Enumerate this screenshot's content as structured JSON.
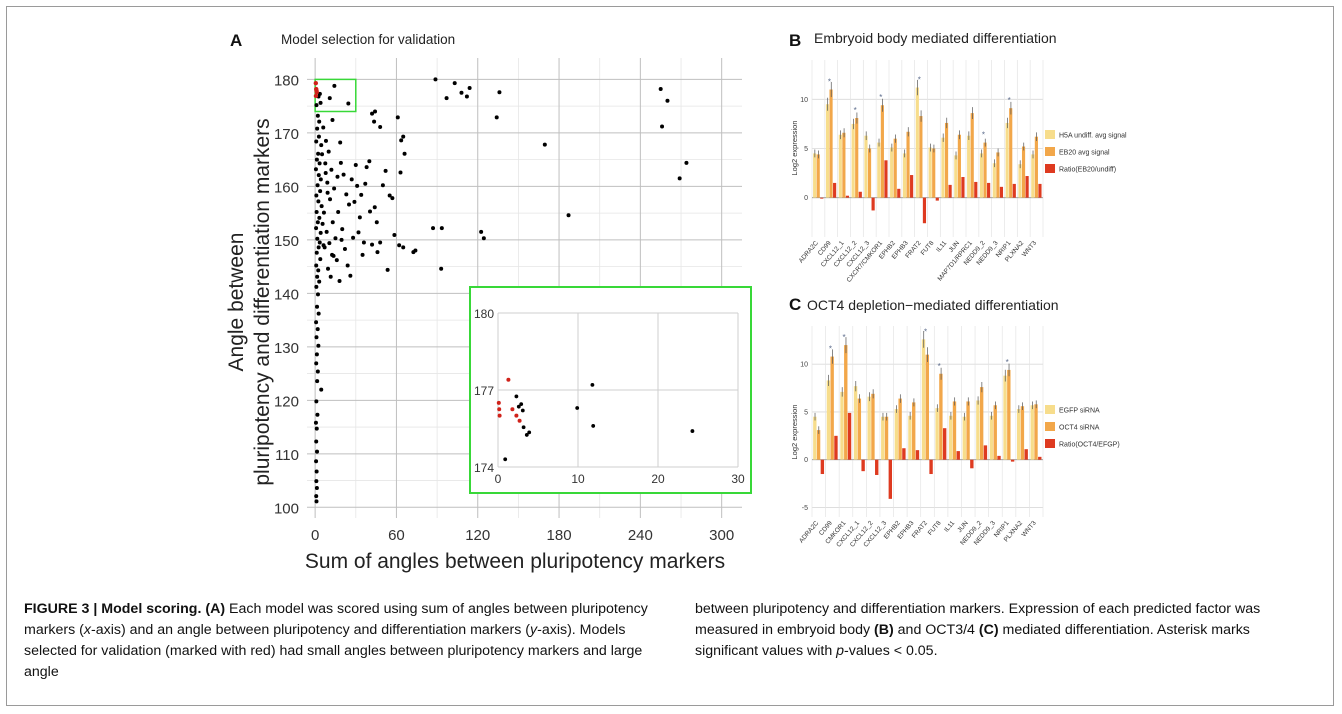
{
  "panels": {
    "A": {
      "letter": "A",
      "title": "Model selection for validation",
      "xlabel": "Sum of angles between pluripotency markers",
      "ylabel_line1": "Angle between",
      "ylabel_line2": "pluripotency and differentiation markers"
    },
    "B": {
      "letter": "B",
      "title": "Embryoid body mediated differentiation",
      "ylabel": "Log2 expression"
    },
    "C": {
      "letter": "C",
      "title": "OCT4 depletion−mediated differentiation",
      "ylabel": "Log2 expression"
    }
  },
  "colors": {
    "point": "#000000",
    "selected": "#d0221a",
    "highlight_box": "#38d838",
    "grid": "#bfbfbf",
    "bar_light": "#f7dd8c",
    "bar_mid": "#f2a74a",
    "bar_ratio": "#de3a20",
    "error_bar": "#555555",
    "asterisk": "#5a6a8a"
  },
  "caption": {
    "label": "FIGURE 3 | Model scoring.",
    "p1_marker": "(A)",
    "p1_a": "Each model was scored using sum of angles between pluripotency markers (",
    "p1_x": "x",
    "p1_b": "-axis) and an angle between pluripotency and differentiation markers (",
    "p1_y": "y",
    "p1_c": "-axis). Models selected for validation (marked with red) had small angles between pluripotency markers and large angle",
    "p2_a": "between pluripotency and differentiation markers. Expression of each predicted factor was measured in embryoid body ",
    "p2_b_marker": "(B)",
    "p2_c": " and OCT3/4 ",
    "p2_d_marker": "(C)",
    "p2_e": " mediated differentiation. Asterisk marks significant values with ",
    "p2_p": "p",
    "p2_f": "-values < 0.05."
  },
  "chart_data": [
    {
      "id": "A",
      "type": "scatter",
      "title": "Model selection for validation",
      "xlabel": "Sum of angles between pluripotency markers",
      "ylabel": "Angle between pluripotency and differentiation markers",
      "xlim": [
        -6,
        315
      ],
      "ylim": [
        98,
        184
      ],
      "xticks": [
        "0",
        "60",
        "120",
        "180",
        "240",
        "300"
      ],
      "yticks": [
        "100",
        "110",
        "120",
        "130",
        "140",
        "150",
        "160",
        "170",
        "180"
      ],
      "grid": true,
      "highlight_region": {
        "x": [
          0,
          30
        ],
        "y": [
          174,
          180
        ]
      },
      "selected": [
        [
          0.5,
          179.3
        ],
        [
          0.8,
          178.2
        ],
        [
          1.2,
          177.6
        ],
        [
          0.6,
          176.9
        ],
        [
          1.0,
          177.9
        ]
      ],
      "points": [
        [
          1.0,
          175.2
        ],
        [
          2.5,
          176.8
        ],
        [
          3.5,
          177.3
        ],
        [
          4.0,
          175.6
        ],
        [
          2.0,
          173.2
        ],
        [
          3.0,
          172.1
        ],
        [
          1.5,
          170.8
        ],
        [
          2.8,
          169.3
        ],
        [
          0.8,
          168.4
        ],
        [
          4.5,
          167.7
        ],
        [
          2.2,
          166.1
        ],
        [
          1.3,
          165.0
        ],
        [
          3.3,
          164.3
        ],
        [
          0.6,
          163.2
        ],
        [
          2.7,
          162.1
        ],
        [
          4.2,
          161.3
        ],
        [
          1.8,
          160.2
        ],
        [
          3.7,
          159.1
        ],
        [
          0.9,
          158.3
        ],
        [
          2.4,
          157.2
        ],
        [
          4.8,
          156.3
        ],
        [
          1.1,
          155.2
        ],
        [
          3.1,
          154.1
        ],
        [
          2.0,
          153.3
        ],
        [
          0.7,
          152.2
        ],
        [
          4.1,
          151.3
        ],
        [
          1.6,
          150.2
        ],
        [
          3.4,
          149.5
        ],
        [
          2.6,
          148.6
        ],
        [
          1.2,
          147.6
        ],
        [
          3.8,
          146.4
        ],
        [
          0.8,
          145.2
        ],
        [
          2.3,
          144.3
        ],
        [
          1.5,
          143.1
        ],
        [
          3.0,
          142.2
        ],
        [
          0.9,
          141.2
        ],
        [
          2.1,
          139.8
        ],
        [
          1.4,
          137.5
        ],
        [
          2.6,
          136.2
        ],
        [
          0.7,
          134.6
        ],
        [
          1.9,
          133.3
        ],
        [
          1.0,
          131.8
        ],
        [
          2.4,
          130.2
        ],
        [
          1.3,
          128.6
        ],
        [
          0.8,
          126.9
        ],
        [
          2.0,
          125.4
        ],
        [
          1.5,
          123.6
        ],
        [
          4.5,
          122.0
        ],
        [
          0.9,
          119.8
        ],
        [
          1.7,
          117.3
        ],
        [
          0.6,
          115.8
        ],
        [
          1.2,
          114.7
        ],
        [
          0.8,
          112.3
        ],
        [
          1.4,
          110.4
        ],
        [
          0.7,
          108.6
        ],
        [
          1.1,
          106.7
        ],
        [
          0.9,
          104.9
        ],
        [
          1.3,
          103.6
        ],
        [
          0.8,
          102.1
        ],
        [
          1.0,
          101.1
        ],
        [
          6.0,
          171.0
        ],
        [
          8.0,
          168.5
        ],
        [
          10.0,
          166.5
        ],
        [
          7.5,
          164.3
        ],
        [
          12.0,
          163.1
        ],
        [
          9.0,
          160.7
        ],
        [
          14.0,
          159.6
        ],
        [
          11.0,
          157.6
        ],
        [
          6.5,
          155.1
        ],
        [
          13.0,
          153.3
        ],
        [
          8.5,
          151.5
        ],
        [
          15.0,
          150.3
        ],
        [
          10.5,
          149.4
        ],
        [
          7.0,
          148.6
        ],
        [
          12.5,
          147.2
        ],
        [
          16.0,
          146.2
        ],
        [
          9.5,
          144.6
        ],
        [
          11.5,
          143.1
        ],
        [
          18.0,
          142.3
        ],
        [
          20.0,
          152.0
        ],
        [
          22.0,
          148.3
        ],
        [
          24.0,
          145.2
        ],
        [
          26.0,
          143.3
        ],
        [
          28.0,
          150.4
        ],
        [
          19.0,
          164.4
        ],
        [
          21.0,
          162.2
        ],
        [
          23.0,
          158.5
        ],
        [
          25.0,
          156.6
        ],
        [
          27.0,
          161.3
        ],
        [
          30.0,
          164.0
        ],
        [
          32.0,
          151.4
        ],
        [
          34.0,
          158.4
        ],
        [
          36.0,
          149.5
        ],
        [
          38.0,
          163.6
        ],
        [
          40.0,
          164.7
        ],
        [
          42.0,
          149.1
        ],
        [
          44.0,
          156.1
        ],
        [
          46.0,
          147.7
        ],
        [
          48.0,
          149.5
        ],
        [
          50.0,
          160.2
        ],
        [
          52.0,
          162.9
        ],
        [
          55.0,
          158.3
        ],
        [
          57.0,
          157.8
        ],
        [
          17.0,
          155.2
        ],
        [
          5.5,
          153.0
        ],
        [
          6.2,
          149.0
        ],
        [
          7.8,
          162.5
        ],
        [
          9.2,
          158.8
        ],
        [
          5.1,
          166.0
        ],
        [
          13.6,
          147.0
        ],
        [
          10.8,
          176.5
        ],
        [
          14.2,
          178.8
        ],
        [
          24.5,
          175.5
        ],
        [
          12.8,
          172.4
        ],
        [
          18.5,
          168.2
        ],
        [
          42.0,
          173.6
        ],
        [
          43.5,
          172.1
        ],
        [
          44.2,
          174.0
        ],
        [
          48.0,
          171.1
        ],
        [
          61.0,
          172.9
        ],
        [
          63.5,
          168.6
        ],
        [
          65.0,
          169.3
        ],
        [
          66.0,
          166.1
        ],
        [
          63.0,
          162.6
        ],
        [
          62.0,
          149.0
        ],
        [
          65.0,
          148.6
        ],
        [
          74.0,
          148.0
        ],
        [
          72.5,
          147.7
        ],
        [
          87.0,
          152.2
        ],
        [
          93.0,
          144.6
        ],
        [
          93.5,
          152.2
        ],
        [
          88.8,
          180.0
        ],
        [
          97.0,
          176.5
        ],
        [
          103.0,
          179.3
        ],
        [
          108.0,
          177.5
        ],
        [
          112.0,
          176.8
        ],
        [
          114.0,
          178.4
        ],
        [
          124.5,
          150.3
        ],
        [
          122.5,
          151.5
        ],
        [
          134.0,
          172.9
        ],
        [
          136.0,
          177.6
        ],
        [
          169.5,
          167.8
        ],
        [
          187.0,
          154.6
        ],
        [
          255.0,
          178.2
        ],
        [
          260.0,
          176.0
        ],
        [
          256.0,
          171.2
        ],
        [
          269.0,
          161.5
        ],
        [
          274.0,
          164.4
        ],
        [
          37.0,
          160.5
        ],
        [
          40.5,
          155.3
        ],
        [
          45.5,
          153.3
        ],
        [
          29.0,
          157.1
        ],
        [
          31.0,
          160.1
        ],
        [
          33.0,
          154.2
        ],
        [
          35.0,
          147.2
        ],
        [
          53.5,
          144.4
        ],
        [
          58.5,
          150.9
        ],
        [
          16.5,
          161.8
        ],
        [
          19.5,
          150.0
        ]
      ],
      "inset": {
        "xlim": [
          0,
          30
        ],
        "ylim": [
          174,
          180
        ],
        "xticks": [
          "0",
          "10",
          "20",
          "30"
        ],
        "yticks": [
          "174",
          "177",
          "180"
        ],
        "selected": [
          [
            0.1,
            176.5
          ],
          [
            0.15,
            176.25
          ],
          [
            0.2,
            176.0
          ],
          [
            1.3,
            177.4
          ],
          [
            1.8,
            176.25
          ],
          [
            2.3,
            176.0
          ],
          [
            2.7,
            175.8
          ]
        ],
        "points": [
          [
            2.3,
            176.75
          ],
          [
            2.6,
            176.35
          ],
          [
            2.9,
            176.45
          ],
          [
            3.1,
            176.2
          ],
          [
            3.2,
            175.55
          ],
          [
            3.6,
            175.25
          ],
          [
            3.9,
            175.35
          ],
          [
            0.9,
            174.3
          ],
          [
            9.9,
            176.3
          ],
          [
            11.8,
            177.2
          ],
          [
            11.9,
            175.6
          ],
          [
            24.3,
            175.4
          ]
        ]
      }
    },
    {
      "id": "B",
      "type": "bar",
      "title": "Embryoid body mediated differentiation",
      "ylabel": "Log2 expression",
      "ylim": [
        -4,
        14
      ],
      "yticks": [
        "0",
        "5",
        "10"
      ],
      "categories": [
        "ADRA2C",
        "CD99",
        "CXCL12_1",
        "CXCL12_2",
        "CXCL12_3",
        "CXCR7/CMKOR1",
        "EPHB2",
        "EPHB3",
        "FRAT2",
        "FUT8",
        "IL11",
        "JUN",
        "MAP7D1/RPRC1",
        "NEDD9_2",
        "NEDD9_3",
        "NRIP1",
        "PLXNA2",
        "WNT3"
      ],
      "legend_position": "right",
      "series": [
        {
          "name": "H5A undiff. avg signal",
          "values": [
            4.5,
            9.5,
            6.4,
            7.5,
            6.3,
            5.6,
            5.1,
            4.5,
            11.2,
            5.1,
            6.1,
            4.3,
            6.3,
            4.5,
            3.5,
            7.6,
            3.4,
            4.4
          ]
        },
        {
          "name": "EB20 avg signal",
          "values": [
            4.4,
            11.0,
            6.6,
            8.1,
            5.0,
            9.4,
            6.0,
            6.7,
            8.3,
            5.0,
            7.6,
            6.4,
            8.6,
            5.6,
            4.6,
            9.1,
            5.2,
            6.2
          ]
        },
        {
          "name": "Ratio(EB20/undiff)",
          "values": [
            -0.1,
            1.5,
            0.2,
            0.6,
            -1.3,
            3.8,
            0.9,
            2.3,
            -2.6,
            -0.3,
            1.3,
            2.1,
            1.6,
            1.5,
            1.1,
            1.4,
            2.2,
            1.4
          ]
        }
      ],
      "significant": [
        "CD99",
        "CXCL12_2",
        "CXCR7/CMKOR1",
        "FRAT2",
        "NEDD9_2",
        "NRIP1"
      ]
    },
    {
      "id": "C",
      "type": "bar",
      "title": "OCT4 depletion−mediated differentiation",
      "ylabel": "Log2 expression",
      "ylim": [
        -6,
        14
      ],
      "yticks": [
        "-5",
        "0",
        "5",
        "10"
      ],
      "categories": [
        "ADRA2C",
        "CD99",
        "CMKOR1",
        "CXCL12_1",
        "CXCL12_2",
        "CXCL12_3",
        "EPHB2",
        "EPHB3",
        "FRAT2",
        "FUT8",
        "IL11",
        "JUN",
        "NEDD9_2",
        "NEDD9_3",
        "NRIP1",
        "PLXNA2",
        "WNT3"
      ],
      "legend_position": "right",
      "series": [
        {
          "name": "EGFP siRNA",
          "values": [
            4.5,
            8.3,
            7.1,
            7.7,
            6.6,
            4.5,
            5.3,
            4.6,
            12.6,
            5.4,
            4.6,
            4.5,
            6.2,
            4.6,
            8.8,
            5.3,
            5.7
          ]
        },
        {
          "name": "OCT4 siRNA",
          "values": [
            3.1,
            10.8,
            12.0,
            6.4,
            6.9,
            4.5,
            6.4,
            6.0,
            11.0,
            9.0,
            6.1,
            6.1,
            7.6,
            5.7,
            9.4,
            5.6,
            5.8
          ]
        },
        {
          "name": "Ratio(OCT4/EFGP)",
          "values": [
            -1.5,
            2.5,
            4.9,
            -1.2,
            -1.6,
            -4.1,
            1.2,
            1.0,
            -1.5,
            3.3,
            0.9,
            -0.9,
            1.5,
            0.4,
            -0.2,
            1.1,
            0.3
          ]
        }
      ],
      "significant": [
        "CD99",
        "CMKOR1",
        "FRAT2",
        "FUT8",
        "NRIP1"
      ]
    }
  ]
}
